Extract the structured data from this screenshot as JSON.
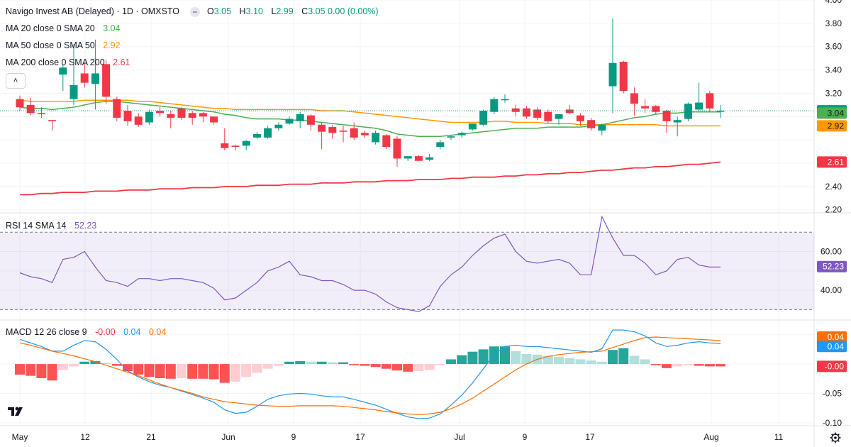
{
  "header": {
    "symbol_title": "Navigo Invest AB (Delayed) · 1D · OMXSTO",
    "ohlc": [
      {
        "key": "O",
        "value": "3.05"
      },
      {
        "key": "H",
        "value": "3.10"
      },
      {
        "key": "L",
        "value": "2.99"
      },
      {
        "key": "C",
        "value": "3.05 0.00 (0.00%)"
      }
    ]
  },
  "legend": {
    "ma20": {
      "label": "MA 20 close 0 SMA 20",
      "value": "3.04",
      "color": "#4caf50"
    },
    "ma50": {
      "label": "MA 50 close 0 SMA 50",
      "value": "2.92",
      "color": "#ff9800"
    },
    "ma200": {
      "label": "MA 200 close 0 SMA 200",
      "value": "2.61",
      "color": "#f23645"
    },
    "rsi": {
      "label": "RSI 14 SMA 14",
      "value": "52.23",
      "color": "#7e57c2"
    },
    "macd": {
      "label": "MACD 12 26 close 9",
      "hist_value": "-0.00",
      "macd_value": "0.04",
      "signal_value": "0.04",
      "hist_color": "#f23645",
      "macd_color": "#2196f3",
      "signal_color": "#ff6d00"
    }
  },
  "colors": {
    "up": "#089981",
    "down": "#f23645",
    "grid": "#f0f3fa",
    "axis_text": "#131722"
  },
  "icons": {
    "collapse": "chevron-up-icon",
    "logo": "tradingview-logo-icon",
    "settings": "gear-icon"
  },
  "chart_data": {
    "type": "candlestick",
    "x_axis_labels": [
      "May",
      "12",
      "21",
      "Jun",
      "9",
      "17",
      "Jul",
      "9",
      "17",
      "Aug",
      "11"
    ],
    "price_axis": {
      "ticks": [
        "4.00",
        "3.80",
        "3.60",
        "3.40",
        "3.20",
        "2.40",
        "2.20"
      ],
      "range": [
        2.18,
        4.0
      ]
    },
    "price_badges": {
      "last": "3.05",
      "ma20": "3.04",
      "ma50": "2.92",
      "ma200": "2.61"
    },
    "candles": [
      {
        "o": 3.15,
        "h": 3.18,
        "l": 3.05,
        "c": 3.08
      },
      {
        "o": 3.1,
        "h": 3.16,
        "l": 3.01,
        "c": 3.03
      },
      {
        "o": 3.03,
        "h": 3.08,
        "l": 2.99,
        "c": 3.02
      },
      {
        "o": 2.97,
        "h": 2.97,
        "l": 2.88,
        "c": 2.96
      },
      {
        "o": 3.36,
        "h": 3.45,
        "l": 3.22,
        "c": 3.42
      },
      {
        "o": 3.15,
        "h": 3.62,
        "l": 3.1,
        "c": 3.27
      },
      {
        "o": 3.37,
        "h": 3.46,
        "l": 3.25,
        "c": 3.29
      },
      {
        "o": 3.28,
        "h": 3.66,
        "l": 3.06,
        "c": 3.37
      },
      {
        "o": 3.45,
        "h": 3.49,
        "l": 3.11,
        "c": 3.17
      },
      {
        "o": 3.15,
        "h": 3.17,
        "l": 2.96,
        "c": 2.99
      },
      {
        "o": 3.05,
        "h": 3.1,
        "l": 2.92,
        "c": 2.96
      },
      {
        "o": 3.0,
        "h": 3.03,
        "l": 2.91,
        "c": 2.93
      },
      {
        "o": 2.95,
        "h": 3.06,
        "l": 2.93,
        "c": 3.04
      },
      {
        "o": 3.05,
        "h": 3.08,
        "l": 3.0,
        "c": 3.03
      },
      {
        "o": 3.02,
        "h": 3.05,
        "l": 2.9,
        "c": 2.99
      },
      {
        "o": 3.07,
        "h": 3.08,
        "l": 2.97,
        "c": 2.99
      },
      {
        "o": 3.03,
        "h": 3.05,
        "l": 2.93,
        "c": 2.99
      },
      {
        "o": 3.03,
        "h": 3.04,
        "l": 2.95,
        "c": 3.0
      },
      {
        "o": 3.0,
        "h": 3.0,
        "l": 2.93,
        "c": 2.95
      },
      {
        "o": 2.77,
        "h": 2.9,
        "l": 2.71,
        "c": 2.73
      },
      {
        "o": 2.75,
        "h": 2.76,
        "l": 2.71,
        "c": 2.74
      },
      {
        "o": 2.75,
        "h": 2.8,
        "l": 2.71,
        "c": 2.79
      },
      {
        "o": 2.82,
        "h": 2.87,
        "l": 2.81,
        "c": 2.85
      },
      {
        "o": 2.82,
        "h": 2.92,
        "l": 2.81,
        "c": 2.9
      },
      {
        "o": 2.9,
        "h": 2.95,
        "l": 2.88,
        "c": 2.93
      },
      {
        "o": 2.94,
        "h": 3.0,
        "l": 2.93,
        "c": 2.98
      },
      {
        "o": 2.96,
        "h": 3.04,
        "l": 2.9,
        "c": 3.02
      },
      {
        "o": 3.01,
        "h": 3.02,
        "l": 2.88,
        "c": 2.93
      },
      {
        "o": 2.93,
        "h": 2.95,
        "l": 2.72,
        "c": 2.87
      },
      {
        "o": 2.91,
        "h": 2.93,
        "l": 2.81,
        "c": 2.86
      },
      {
        "o": 2.88,
        "h": 2.92,
        "l": 2.78,
        "c": 2.87
      },
      {
        "o": 2.9,
        "h": 2.95,
        "l": 2.8,
        "c": 2.82
      },
      {
        "o": 2.86,
        "h": 2.88,
        "l": 2.82,
        "c": 2.84
      },
      {
        "o": 2.78,
        "h": 2.88,
        "l": 2.76,
        "c": 2.86
      },
      {
        "o": 2.84,
        "h": 2.85,
        "l": 2.72,
        "c": 2.74
      },
      {
        "o": 2.81,
        "h": 2.83,
        "l": 2.57,
        "c": 2.64
      },
      {
        "o": 2.64,
        "h": 2.65,
        "l": 2.62,
        "c": 2.66
      },
      {
        "o": 2.66,
        "h": 2.67,
        "l": 2.62,
        "c": 2.62
      },
      {
        "o": 2.63,
        "h": 2.68,
        "l": 2.62,
        "c": 2.65
      },
      {
        "o": 2.74,
        "h": 2.8,
        "l": 2.72,
        "c": 2.78
      },
      {
        "o": 2.82,
        "h": 2.84,
        "l": 2.8,
        "c": 2.83
      },
      {
        "o": 2.84,
        "h": 2.87,
        "l": 2.82,
        "c": 2.86
      },
      {
        "o": 2.89,
        "h": 2.94,
        "l": 2.88,
        "c": 2.94
      },
      {
        "o": 2.93,
        "h": 3.06,
        "l": 2.92,
        "c": 3.05
      },
      {
        "o": 3.04,
        "h": 3.17,
        "l": 3.02,
        "c": 3.15
      },
      {
        "o": 3.14,
        "h": 3.19,
        "l": 3.12,
        "c": 3.15
      },
      {
        "o": 3.07,
        "h": 3.1,
        "l": 3.0,
        "c": 3.04
      },
      {
        "o": 3.07,
        "h": 3.09,
        "l": 2.98,
        "c": 3.0
      },
      {
        "o": 3.06,
        "h": 3.08,
        "l": 2.97,
        "c": 2.99
      },
      {
        "o": 3.04,
        "h": 3.06,
        "l": 2.94,
        "c": 2.96
      },
      {
        "o": 2.98,
        "h": 3.01,
        "l": 2.93,
        "c": 3.02
      },
      {
        "o": 3.06,
        "h": 3.1,
        "l": 3.02,
        "c": 3.03
      },
      {
        "o": 3.01,
        "h": 3.03,
        "l": 2.92,
        "c": 2.96
      },
      {
        "o": 2.97,
        "h": 2.99,
        "l": 2.88,
        "c": 2.9
      },
      {
        "o": 2.88,
        "h": 2.94,
        "l": 2.84,
        "c": 2.93
      },
      {
        "o": 3.26,
        "h": 3.84,
        "l": 3.03,
        "c": 3.46
      },
      {
        "o": 3.47,
        "h": 3.48,
        "l": 3.2,
        "c": 3.22
      },
      {
        "o": 3.2,
        "h": 3.25,
        "l": 3.01,
        "c": 3.11
      },
      {
        "o": 3.09,
        "h": 3.15,
        "l": 3.03,
        "c": 3.07
      },
      {
        "o": 3.09,
        "h": 3.1,
        "l": 3.02,
        "c": 3.04
      },
      {
        "o": 3.05,
        "h": 3.06,
        "l": 2.86,
        "c": 2.96
      },
      {
        "o": 2.95,
        "h": 3.0,
        "l": 2.83,
        "c": 2.97
      },
      {
        "o": 2.98,
        "h": 3.12,
        "l": 2.96,
        "c": 3.11
      },
      {
        "o": 3.06,
        "h": 3.29,
        "l": 3.05,
        "c": 3.12
      },
      {
        "o": 3.2,
        "h": 3.22,
        "l": 3.04,
        "c": 3.07
      },
      {
        "o": 3.05,
        "h": 3.1,
        "l": 2.99,
        "c": 3.05
      }
    ],
    "ma20": [
      3.08,
      3.07,
      3.07,
      3.06,
      3.07,
      3.08,
      3.1,
      3.12,
      3.13,
      3.13,
      3.12,
      3.11,
      3.1,
      3.09,
      3.08,
      3.07,
      3.06,
      3.05,
      3.04,
      3.02,
      3.01,
      2.99,
      2.98,
      2.98,
      2.98,
      2.97,
      2.97,
      2.96,
      2.95,
      2.94,
      2.93,
      2.92,
      2.91,
      2.9,
      2.88,
      2.85,
      2.84,
      2.83,
      2.83,
      2.83,
      2.84,
      2.85,
      2.86,
      2.87,
      2.88,
      2.89,
      2.9,
      2.9,
      2.9,
      2.91,
      2.91,
      2.91,
      2.91,
      2.92,
      2.93,
      2.95,
      2.97,
      2.99,
      3.0,
      3.02,
      3.03,
      3.03,
      3.04,
      3.04,
      3.04,
      3.04
    ],
    "ma50": [
      3.14,
      3.13,
      3.13,
      3.13,
      3.13,
      3.13,
      3.14,
      3.14,
      3.14,
      3.14,
      3.14,
      3.13,
      3.13,
      3.12,
      3.11,
      3.1,
      3.09,
      3.08,
      3.07,
      3.07,
      3.06,
      3.06,
      3.06,
      3.06,
      3.06,
      3.06,
      3.06,
      3.06,
      3.05,
      3.05,
      3.05,
      3.04,
      3.03,
      3.02,
      3.01,
      3.0,
      2.99,
      2.98,
      2.97,
      2.96,
      2.95,
      2.95,
      2.95,
      2.95,
      2.96,
      2.96,
      2.95,
      2.95,
      2.95,
      2.94,
      2.94,
      2.94,
      2.93,
      2.93,
      2.93,
      2.93,
      2.93,
      2.93,
      2.93,
      2.93,
      2.92,
      2.92,
      2.92,
      2.92,
      2.92,
      2.92
    ],
    "ma200": [
      2.33,
      2.33,
      2.34,
      2.34,
      2.35,
      2.35,
      2.35,
      2.36,
      2.36,
      2.36,
      2.37,
      2.37,
      2.37,
      2.38,
      2.38,
      2.38,
      2.39,
      2.39,
      2.39,
      2.4,
      2.4,
      2.4,
      2.41,
      2.41,
      2.41,
      2.42,
      2.42,
      2.42,
      2.43,
      2.43,
      2.43,
      2.44,
      2.44,
      2.44,
      2.45,
      2.45,
      2.45,
      2.46,
      2.46,
      2.46,
      2.47,
      2.47,
      2.48,
      2.48,
      2.48,
      2.49,
      2.49,
      2.5,
      2.5,
      2.51,
      2.51,
      2.52,
      2.52,
      2.53,
      2.54,
      2.54,
      2.55,
      2.56,
      2.56,
      2.57,
      2.57,
      2.58,
      2.59,
      2.59,
      2.6,
      2.61
    ],
    "rsi": {
      "ticks": [
        "60.00",
        "40.00"
      ],
      "range": [
        25,
        80
      ],
      "bands": [
        70,
        30
      ],
      "last": "52.23",
      "values": [
        49,
        47,
        46,
        44,
        56,
        57,
        60,
        52,
        45,
        44,
        42,
        46,
        46,
        45,
        46,
        46,
        45,
        44,
        41,
        35,
        36,
        40,
        44,
        50,
        52,
        55,
        48,
        47,
        45,
        45,
        43,
        40,
        40,
        38,
        34,
        31,
        30,
        29,
        32,
        42,
        48,
        52,
        58,
        63,
        67,
        69,
        60,
        55,
        54,
        55,
        56,
        54,
        48,
        48,
        78,
        67,
        58,
        58,
        54,
        48,
        50,
        56,
        57,
        53,
        52,
        52
      ]
    },
    "macd": {
      "ticks": [
        "-0.05",
        "-0.10"
      ],
      "range": [
        -0.105,
        0.075
      ],
      "last_hist": "-0.00",
      "last_macd": "0.04",
      "last_signal": "0.04",
      "hist": [
        -0.018,
        -0.02,
        -0.024,
        -0.028,
        -0.01,
        -0.004,
        0.004,
        0.005,
        0.002,
        -0.003,
        -0.012,
        -0.018,
        -0.022,
        -0.024,
        -0.025,
        -0.024,
        -0.025,
        -0.025,
        -0.026,
        -0.032,
        -0.03,
        -0.022,
        -0.015,
        -0.008,
        -0.003,
        0.004,
        0.005,
        0.004,
        0.004,
        0.003,
        0.003,
        -0.002,
        -0.003,
        -0.005,
        -0.008,
        -0.011,
        -0.013,
        -0.012,
        -0.01,
        -0.002,
        0.008,
        0.015,
        0.021,
        0.025,
        0.03,
        0.03,
        0.022,
        0.017,
        0.016,
        0.014,
        0.012,
        0.01,
        0.008,
        0.006,
        0.004,
        0.024,
        0.027,
        0.014,
        0.008,
        -0.002,
        -0.007,
        -0.004,
        -0.002,
        -0.003,
        -0.004,
        -0.004
      ],
      "macd": [
        0.042,
        0.036,
        0.03,
        0.022,
        0.022,
        0.032,
        0.04,
        0.038,
        0.025,
        0.008,
        -0.012,
        -0.022,
        -0.03,
        -0.036,
        -0.04,
        -0.046,
        -0.052,
        -0.058,
        -0.065,
        -0.078,
        -0.084,
        -0.082,
        -0.072,
        -0.06,
        -0.054,
        -0.051,
        -0.05,
        -0.051,
        -0.054,
        -0.056,
        -0.056,
        -0.06,
        -0.065,
        -0.07,
        -0.077,
        -0.084,
        -0.09,
        -0.093,
        -0.092,
        -0.085,
        -0.07,
        -0.053,
        -0.032,
        -0.008,
        0.016,
        0.03,
        0.032,
        0.03,
        0.03,
        0.028,
        0.026,
        0.024,
        0.022,
        0.02,
        0.026,
        0.058,
        0.058,
        0.055,
        0.048,
        0.036,
        0.03,
        0.032,
        0.036,
        0.038,
        0.036,
        0.035
      ],
      "signal": [
        0.036,
        0.032,
        0.027,
        0.022,
        0.018,
        0.014,
        0.009,
        0.004,
        -0.002,
        -0.008,
        -0.014,
        -0.02,
        -0.027,
        -0.034,
        -0.04,
        -0.045,
        -0.05,
        -0.056,
        -0.06,
        -0.064,
        -0.066,
        -0.068,
        -0.07,
        -0.071,
        -0.072,
        -0.072,
        -0.071,
        -0.071,
        -0.071,
        -0.071,
        -0.072,
        -0.074,
        -0.076,
        -0.078,
        -0.081,
        -0.083,
        -0.085,
        -0.086,
        -0.085,
        -0.082,
        -0.076,
        -0.068,
        -0.058,
        -0.046,
        -0.034,
        -0.022,
        -0.01,
        0.0,
        0.008,
        0.013,
        0.016,
        0.018,
        0.02,
        0.021,
        0.022,
        0.028,
        0.034,
        0.04,
        0.045,
        0.046,
        0.045,
        0.044,
        0.043,
        0.042,
        0.041,
        0.04
      ]
    }
  }
}
